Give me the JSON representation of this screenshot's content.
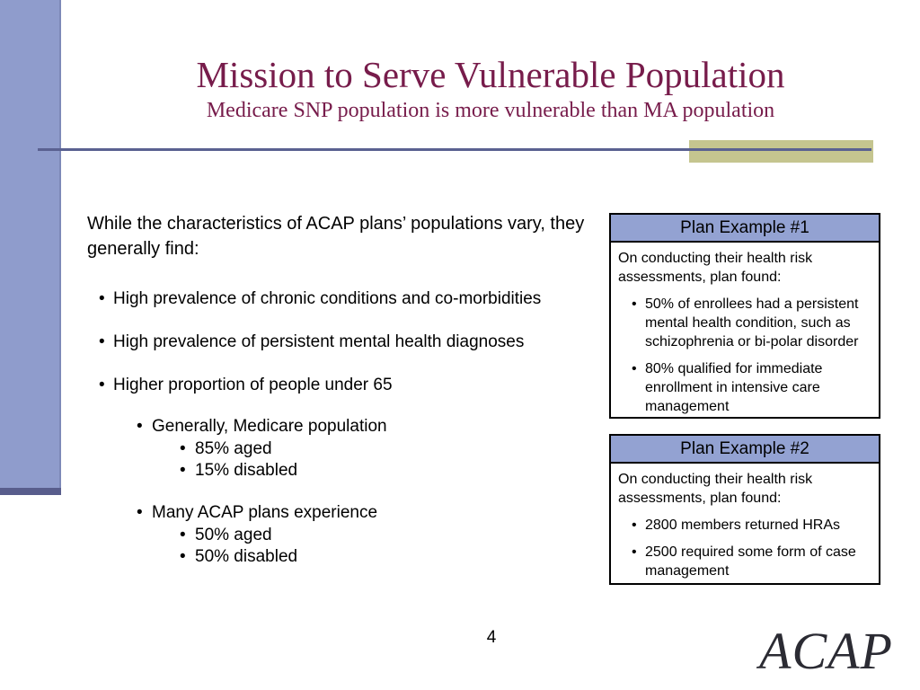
{
  "slide": {
    "title": "Mission to Serve Vulnerable Population",
    "subtitle": "Medicare SNP population is more vulnerable than MA population",
    "page_number": "4",
    "logo_text": "ACAP"
  },
  "colors": {
    "sidebar_accent": "#8F9CCC",
    "sidebar_cap": "#585D8C",
    "divider_line": "#5A6191",
    "accent_tan": "#C5C58F",
    "title_maroon": "#771C4B",
    "plan_header_bg": "#93A2D2",
    "plan_border": "#000000"
  },
  "body": {
    "intro": "While the characteristics of ACAP plans’ populations vary, they generally find:",
    "bullets": [
      "High prevalence of chronic conditions and co-morbidities",
      "High prevalence of persistent mental health diagnoses",
      "Higher proportion of people under 65"
    ],
    "sub_groups": [
      {
        "label": "Generally, Medicare population",
        "items": [
          "85% aged",
          "15% disabled"
        ]
      },
      {
        "label": "Many ACAP plans experience",
        "items": [
          "50% aged",
          "50% disabled"
        ]
      }
    ]
  },
  "plan_examples": [
    {
      "title": "Plan Example #1",
      "intro": "On conducting their health risk assessments, plan found:",
      "bullets": [
        "50% of enrollees had a persistent mental health condition, such as schizophrenia or bi-polar disorder",
        "80% qualified for immediate enrollment in intensive care management"
      ]
    },
    {
      "title": "Plan Example #2",
      "intro": "On conducting their health risk assessments, plan found:",
      "bullets": [
        "2800 members returned HRAs",
        "2500 required some form of case management"
      ]
    }
  ]
}
